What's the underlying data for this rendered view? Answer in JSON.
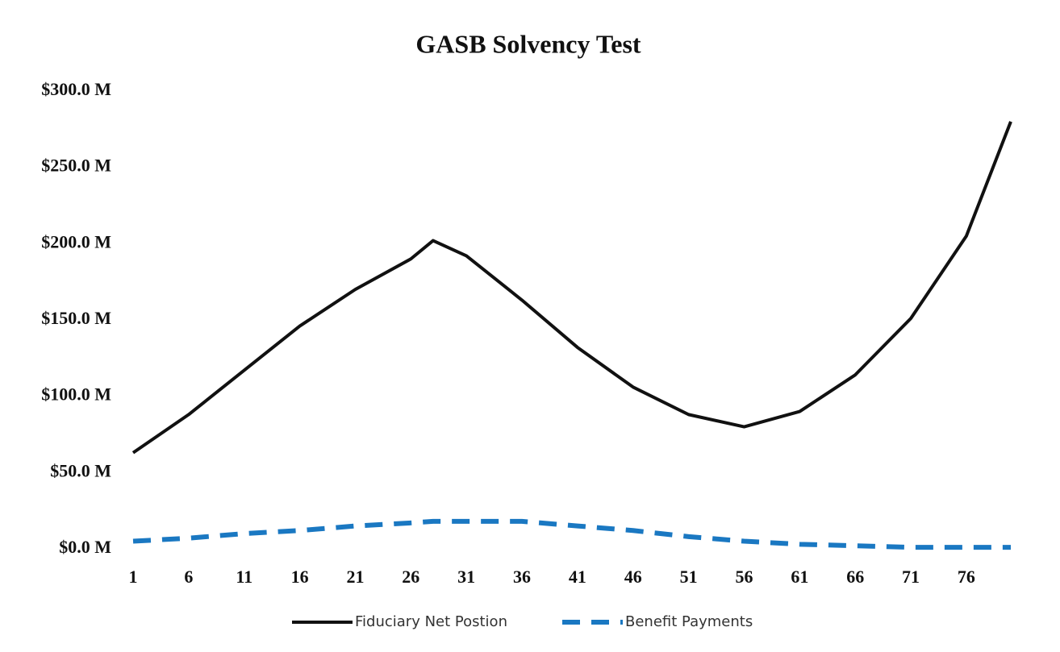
{
  "chart_data": {
    "type": "line",
    "title": "GASB Solvency Test",
    "x": [
      1,
      6,
      11,
      16,
      21,
      26,
      28,
      31,
      36,
      41,
      46,
      51,
      56,
      61,
      66,
      71,
      76,
      80
    ],
    "series": [
      {
        "name": "Fiduciary Net Postion",
        "color": "#111111",
        "dash": false,
        "values": [
          63,
          88,
          117,
          146,
          170,
          190,
          202,
          192,
          163,
          132,
          106,
          88,
          80,
          90,
          114,
          151,
          205,
          280
        ]
      },
      {
        "name": "Benefit Payments",
        "color": "#1a78c2",
        "dash": true,
        "values": [
          5,
          7,
          10,
          12,
          15,
          17,
          18,
          18,
          18,
          15,
          12,
          8,
          5,
          3,
          2,
          1,
          1,
          1
        ]
      }
    ],
    "xlim": [
      1,
      80
    ],
    "xticks": [
      1,
      6,
      11,
      16,
      21,
      26,
      31,
      36,
      41,
      46,
      51,
      56,
      61,
      66,
      71,
      76
    ],
    "ylim": [
      0,
      300
    ],
    "yticks": [
      {
        "value": 0,
        "label": "$0.0 M"
      },
      {
        "value": 50,
        "label": "$50.0 M"
      },
      {
        "value": 100,
        "label": "$100.0 M"
      },
      {
        "value": 150,
        "label": "$150.0 M"
      },
      {
        "value": 200,
        "label": "$200.0 M"
      },
      {
        "value": 250,
        "label": "$250.0 M"
      },
      {
        "value": 300,
        "label": "$300.0 M"
      }
    ],
    "grid": false,
    "legend": "bottom"
  }
}
